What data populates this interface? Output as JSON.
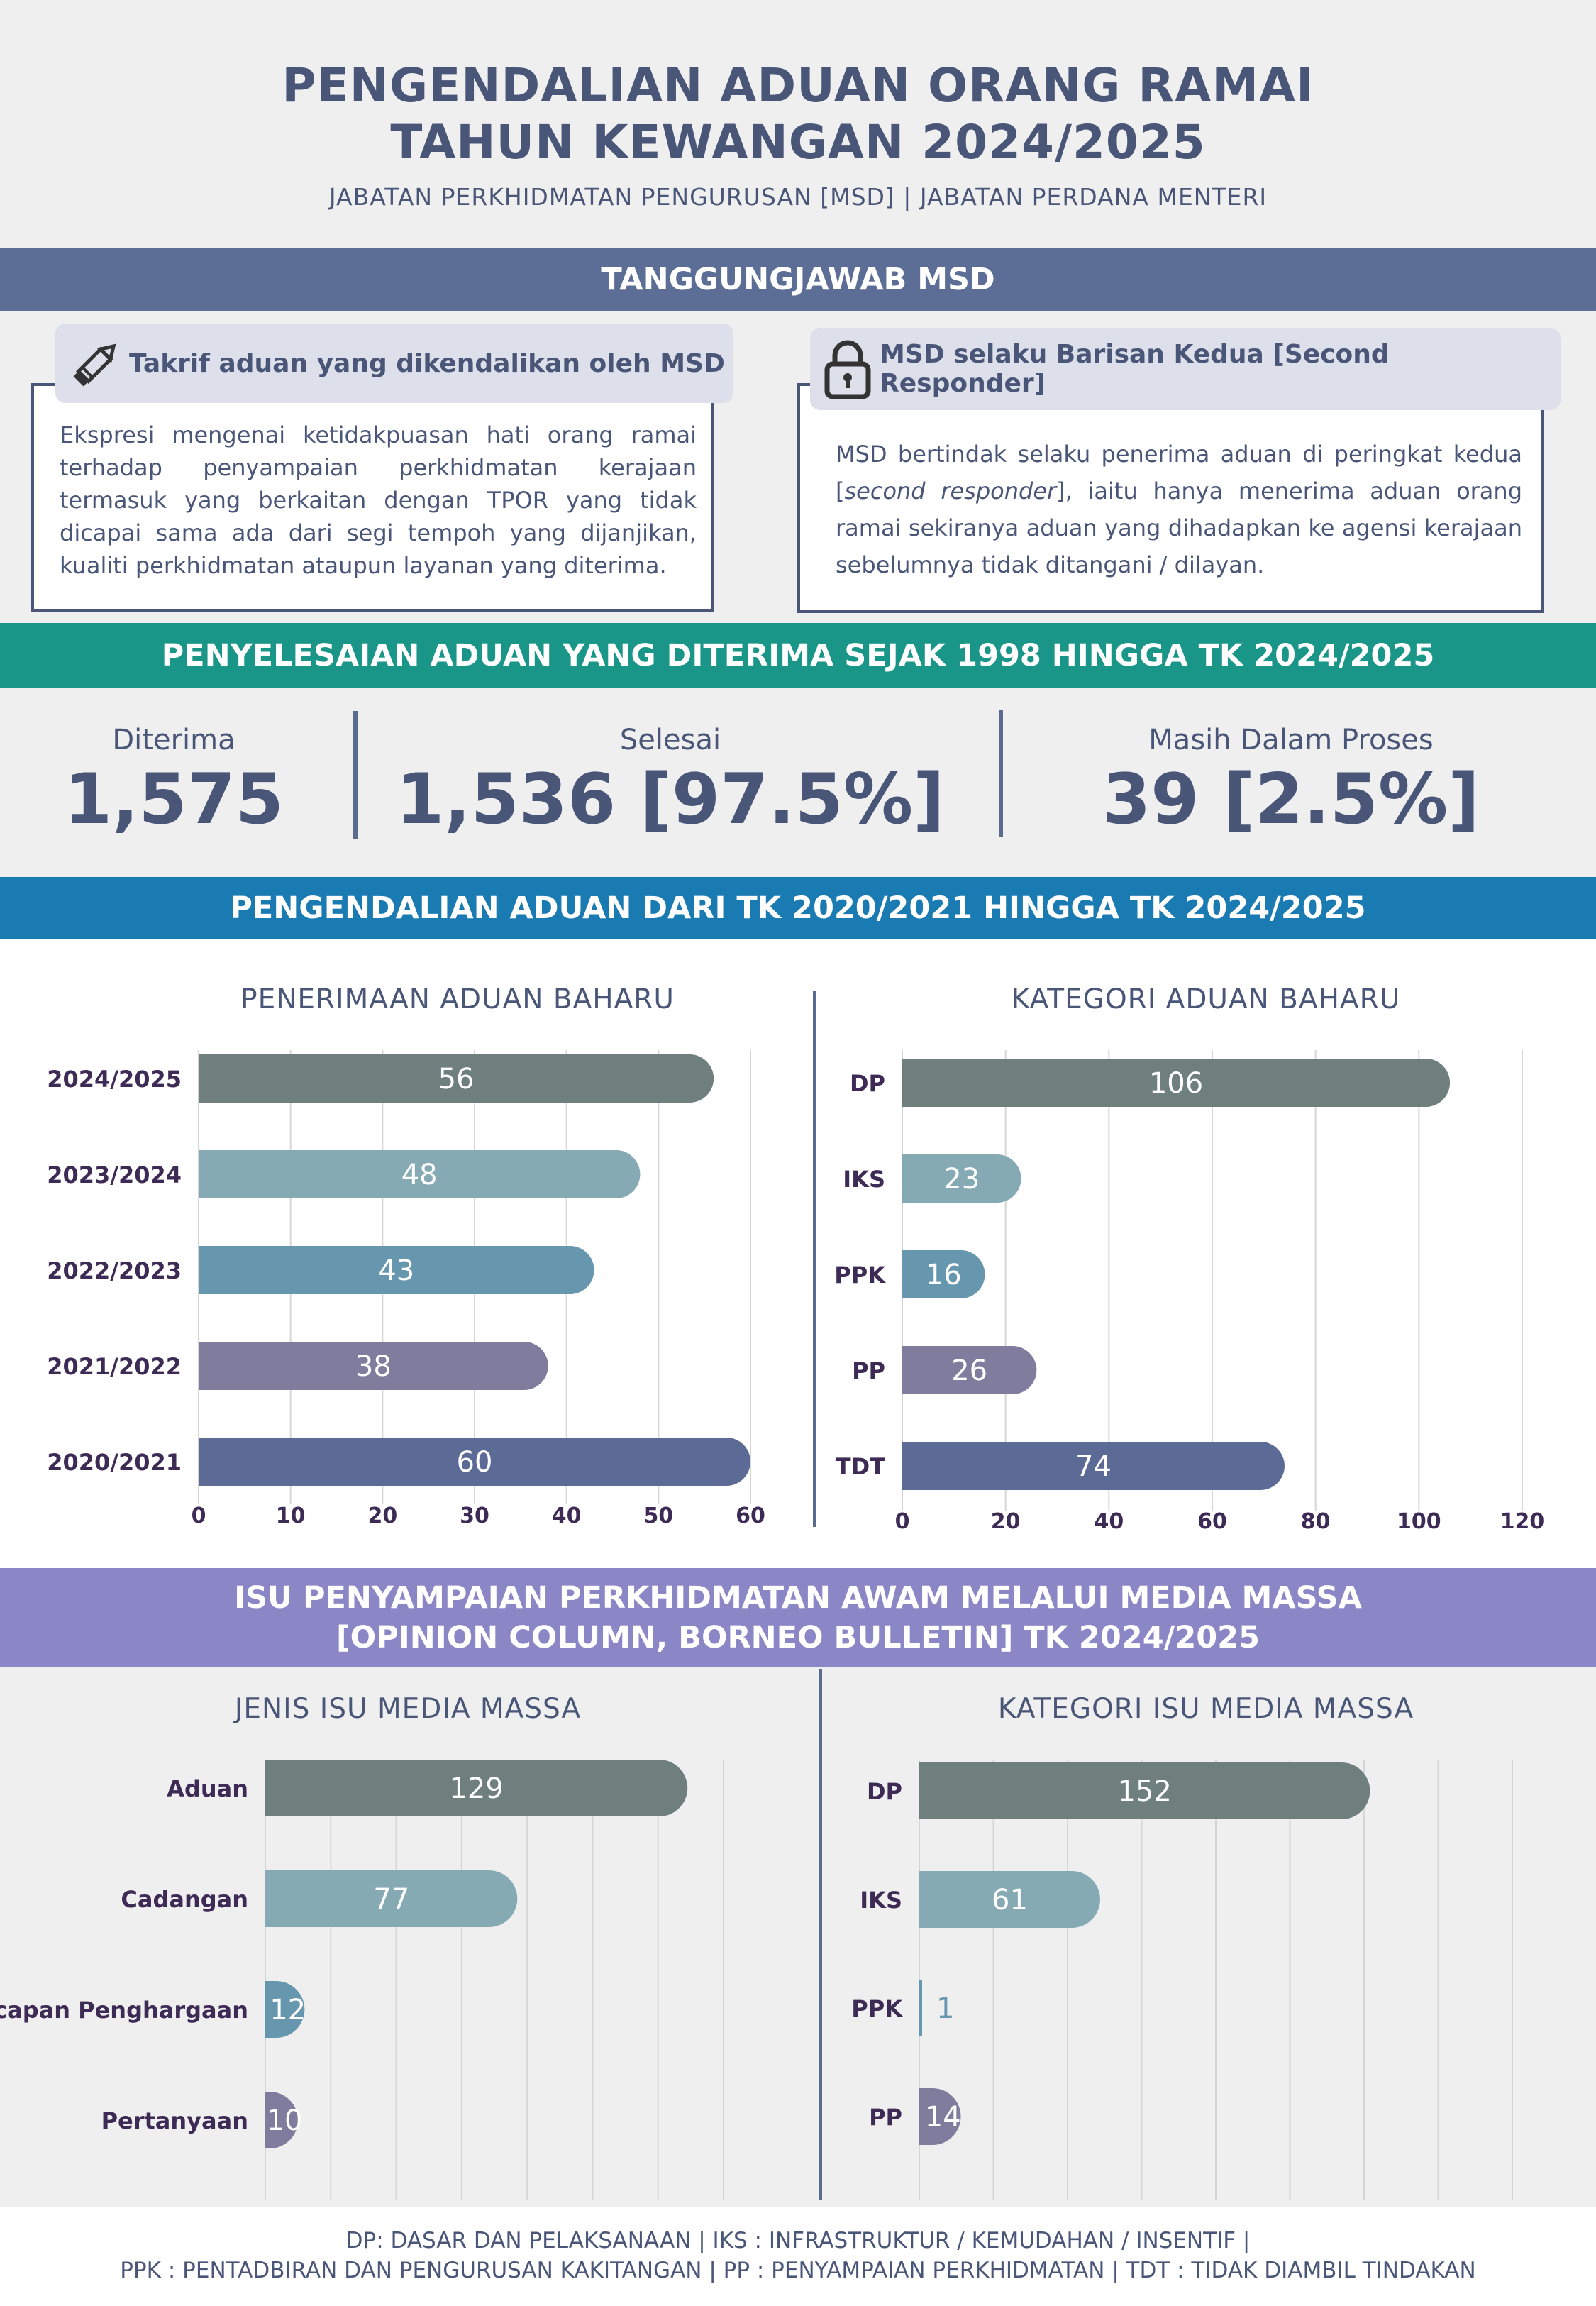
{
  "header": {
    "title_line1": "PENGENDALIAN ADUAN ORANG RAMAI",
    "title_line2": "TAHUN KEWANGAN 2024/2025",
    "subtitle": "JABATAN PERKHIDMATAN PENGURUSAN [MSD] | JABATAN PERDANA MENTERI"
  },
  "section1": {
    "band": "TANGGUNGJAWAB MSD",
    "card_left": {
      "heading": "Takrif aduan yang dikendalikan oleh MSD",
      "icon": "pencil-icon",
      "body": "Ekspresi mengenai ketidakpuasan hati orang ramai terhadap penyampaian perkhidmatan kerajaan termasuk yang berkaitan dengan TPOR yang tidak dicapai sama ada dari segi tempoh yang dijanjikan, kualiti perkhidmatan ataupun layanan yang diterima."
    },
    "card_right": {
      "heading": "MSD selaku Barisan Kedua [Second Responder]",
      "icon": "lock-icon",
      "body_part1": "MSD bertindak selaku penerima aduan di peringkat kedua [",
      "body_italic": "second responder",
      "body_part2": "], iaitu hanya menerima aduan orang ramai sekiranya aduan yang dihadapkan ke agensi kerajaan sebelumnya tidak ditangani / dilayan."
    }
  },
  "section2": {
    "band": "PENYELESAIAN ADUAN YANG DITERIMA SEJAK 1998 HINGGA TK 2024/2025",
    "stats": [
      {
        "label": "Diterima",
        "value": "1,575"
      },
      {
        "label": "Selesai",
        "value": "1,536 [97.5%]"
      },
      {
        "label": "Masih Dalam Proses",
        "value": "39 [2.5%]"
      }
    ]
  },
  "section3": {
    "band": "PENGENDALIAN ADUAN DARI TK 2020/2021 HINGGA TK 2024/2025"
  },
  "section4": {
    "band_line1": "ISU PENYAMPAIAN PERKHIDMATAN AWAM MELALUI MEDIA MASSA",
    "band_line2": "[OPINION COLUMN, BORNEO BULLETIN] TK 2024/2025"
  },
  "footer": {
    "line1": "DP: DASAR DAN PELAKSANAAN | IKS : INFRASTRUKTUR / KEMUDAHAN / INSENTIF |",
    "line2": "PPK : PENTADBIRAN DAN PENGURUSAN KAKITANGAN  | PP : PENYAMPAIAN PERKHIDMATAN | TDT : TIDAK DIAMBIL TINDAKAN"
  },
  "colors": {
    "navy": "#5c6d96",
    "teal": "#1a9688",
    "blue": "#1a7ab2",
    "purple": "#8b86c6",
    "bar1": "#6e7f7e",
    "bar2": "#86aab4",
    "bar3": "#6797ae",
    "bar4": "#807c9d",
    "bar5": "#5b6b96"
  },
  "chart_data": [
    {
      "type": "bar",
      "orientation": "horizontal",
      "title": "PENERIMAAN ADUAN BAHARU",
      "categories": [
        "2024/2025",
        "2023/2024",
        "2022/2023",
        "2021/2022",
        "2020/2021"
      ],
      "values": [
        56,
        48,
        43,
        38,
        60
      ],
      "xlim": [
        0,
        60
      ],
      "xticks": [
        0,
        10,
        20,
        30,
        40,
        50,
        60
      ],
      "grid": true
    },
    {
      "type": "bar",
      "orientation": "horizontal",
      "title": "KATEGORI ADUAN BAHARU",
      "categories": [
        "DP",
        "IKS",
        "PPK",
        "PP",
        "TDT"
      ],
      "values": [
        106,
        23,
        16,
        26,
        74
      ],
      "xlim": [
        0,
        120
      ],
      "xticks": [
        0,
        20,
        40,
        60,
        80,
        100,
        120
      ],
      "grid": true
    },
    {
      "type": "bar",
      "orientation": "horizontal",
      "title": "JENIS ISU MEDIA MASSA",
      "categories": [
        "Aduan",
        "Cadangan",
        "Ucapan Penghargaan",
        "Pertanyaan"
      ],
      "values": [
        129,
        77,
        12,
        10
      ],
      "xlim": [
        0,
        140
      ],
      "grid": true
    },
    {
      "type": "bar",
      "orientation": "horizontal",
      "title": "KATEGORI ISU MEDIA MASSA",
      "categories": [
        "DP",
        "IKS",
        "PPK",
        "PP"
      ],
      "values": [
        152,
        61,
        1,
        14
      ],
      "xlim": [
        0,
        200
      ],
      "grid": true
    }
  ]
}
